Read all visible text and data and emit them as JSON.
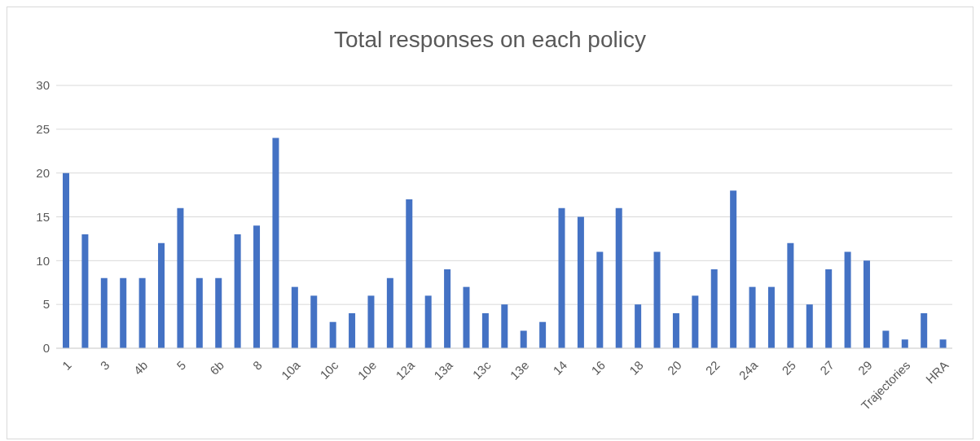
{
  "chart_data": {
    "type": "bar",
    "title": "Total responses on each policy",
    "categories": [
      "1",
      null,
      "3",
      null,
      "4b",
      null,
      "5",
      null,
      "6b",
      null,
      "8",
      null,
      "10a",
      null,
      "10c",
      null,
      "10e",
      null,
      "12a",
      null,
      "13a",
      null,
      "13c",
      null,
      "13e",
      null,
      "14",
      null,
      "16",
      null,
      "18",
      null,
      "20",
      null,
      "22",
      null,
      "24a",
      null,
      "25",
      null,
      "27",
      null,
      "29",
      null,
      "Trajectories",
      null,
      "HRA"
    ],
    "values": [
      20,
      13,
      8,
      8,
      8,
      12,
      16,
      8,
      8,
      13,
      14,
      24,
      7,
      6,
      3,
      4,
      6,
      8,
      17,
      6,
      9,
      7,
      4,
      5,
      2,
      3,
      16,
      15,
      11,
      16,
      5,
      11,
      4,
      6,
      9,
      18,
      7,
      7,
      12,
      5,
      9,
      11,
      10,
      2,
      1,
      4,
      1
    ],
    "color": "#4472c4",
    "ylim": [
      0,
      30
    ],
    "yticks": [
      0,
      5,
      10,
      15,
      20,
      25,
      30
    ],
    "grid": "y",
    "legend": false
  }
}
